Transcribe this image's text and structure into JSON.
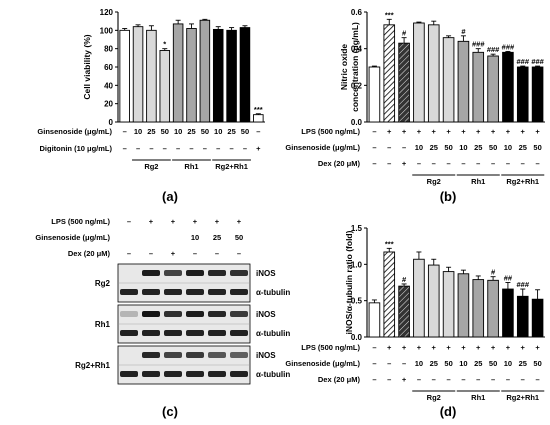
{
  "panel_labels": {
    "a": "(a)",
    "b": "(b)",
    "c": "(c)",
    "d": "(d)"
  },
  "colors": {
    "black": "#000000",
    "white": "#ffffff",
    "gray_light": "#d9d9d9",
    "gray_mid": "#a6a6a6",
    "gray_dark": "#606060",
    "blot_bg": "#e8e8e8"
  },
  "panel_a": {
    "row_labels": [
      "Ginsenoside (μg/mL)",
      "Digitonin (10 μg/mL)"
    ],
    "rows": [
      [
        "–",
        "10",
        "25",
        "50",
        "10",
        "25",
        "50",
        "10",
        "25",
        "50",
        "–"
      ],
      [
        "–",
        "–",
        "–",
        "–",
        "–",
        "–",
        "–",
        "–",
        "–",
        "–",
        "+"
      ]
    ],
    "groups": [
      "Rg2",
      "Rh1",
      "Rg2+Rh1"
    ]
  },
  "panel_b": {
    "row_labels": [
      "LPS (500 ng/mL)",
      "Ginsenoside (μg/mL)",
      "Dex (20 μM)"
    ],
    "rows": [
      [
        "–",
        "+",
        "+",
        "+",
        "+",
        "+",
        "+",
        "+",
        "+",
        "+",
        "+",
        "+"
      ],
      [
        "–",
        "–",
        "–",
        "10",
        "25",
        "50",
        "10",
        "25",
        "50",
        "10",
        "25",
        "50"
      ],
      [
        "–",
        "–",
        "+",
        "–",
        "–",
        "–",
        "–",
        "–",
        "–",
        "–",
        "–",
        "–"
      ]
    ],
    "groups": [
      "Rg2",
      "Rh1",
      "Rg2+Rh1"
    ]
  },
  "panel_c": {
    "row_labels": [
      "LPS (500 ng/mL)",
      "Ginsenoside (μg/mL)",
      "Dex (20 μM)"
    ],
    "rows": [
      [
        "–",
        "+",
        "+",
        "+",
        "+",
        "+"
      ],
      [
        "",
        "",
        "",
        "10",
        "25",
        "50"
      ],
      [
        "–",
        "–",
        "+",
        "–",
        "–",
        "–"
      ]
    ],
    "blots": [
      {
        "group": "Rg2",
        "bands": [
          "iNOS",
          "α-tubulin"
        ]
      },
      {
        "group": "Rh1",
        "bands": [
          "iNOS",
          "α-tubulin"
        ]
      },
      {
        "group": "Rg2+Rh1",
        "bands": [
          "iNOS",
          "α-tubulin"
        ]
      }
    ],
    "inos_intensity": [
      [
        0.0,
        0.9,
        0.7,
        0.9,
        0.85,
        0.8
      ],
      [
        0.1,
        0.95,
        0.8,
        0.9,
        0.85,
        0.75
      ],
      [
        0.0,
        0.85,
        0.7,
        0.75,
        0.6,
        0.55
      ]
    ]
  },
  "panel_d": {
    "row_labels": [
      "LPS (500 ng/mL)",
      "Ginsenoside (μg/mL)",
      "Dex (20 μM)"
    ],
    "rows": [
      [
        "–",
        "+",
        "+",
        "+",
        "+",
        "+",
        "+",
        "+",
        "+",
        "+",
        "+",
        "+"
      ],
      [
        "–",
        "–",
        "–",
        "10",
        "25",
        "50",
        "10",
        "25",
        "50",
        "10",
        "25",
        "50"
      ],
      [
        "–",
        "–",
        "+",
        "–",
        "–",
        "–",
        "–",
        "–",
        "–",
        "–",
        "–",
        "–"
      ]
    ],
    "groups": [
      "Rg2",
      "Rh1",
      "Rg2+Rh1"
    ]
  },
  "chart_data": [
    {
      "type": "bar",
      "panel": "a",
      "ylabel": "Cell viability (%)",
      "ylim": [
        0,
        120
      ],
      "yticks": [
        "0",
        "20",
        "40",
        "60",
        "80",
        "100",
        "120"
      ],
      "values": [
        100,
        104,
        100,
        78,
        107,
        102,
        111,
        101,
        100,
        103,
        8
      ],
      "errors": [
        2,
        2,
        5,
        2,
        4,
        5,
        1,
        3,
        3,
        2,
        1
      ],
      "fills": [
        "white",
        "gray_light",
        "gray_light",
        "gray_light",
        "gray_mid",
        "gray_mid",
        "gray_mid",
        "black",
        "black",
        "black",
        "white"
      ],
      "annotations": [
        "",
        "",
        "",
        "*",
        "",
        "",
        "",
        "",
        "",
        "",
        "***"
      ]
    },
    {
      "type": "bar",
      "panel": "b",
      "ylabel": "Nitric oxide concentration (μg/mL)",
      "ylim": [
        0,
        0.6
      ],
      "yticks": [
        "0.0",
        "0.2",
        "0.4",
        "0.6"
      ],
      "values": [
        0.3,
        0.53,
        0.43,
        0.54,
        0.53,
        0.46,
        0.44,
        0.38,
        0.36,
        0.38,
        0.3,
        0.3
      ],
      "errors": [
        0.005,
        0.03,
        0.03,
        0.005,
        0.02,
        0.01,
        0.03,
        0.02,
        0.01,
        0.005,
        0.005,
        0.005
      ],
      "fills": [
        "white",
        "hatch",
        "hatchdark",
        "gray_light",
        "gray_light",
        "gray_light",
        "gray_mid",
        "gray_mid",
        "gray_mid",
        "black",
        "black",
        "black"
      ],
      "annotations": [
        "",
        "***",
        "#",
        "",
        "",
        "",
        "#",
        "###",
        "###",
        "###",
        "###",
        "###"
      ]
    },
    {
      "type": "bar",
      "panel": "d",
      "ylabel": "iNOS/α-tubulin ratio (fold)",
      "ylim": [
        0,
        1.5
      ],
      "yticks": [
        "0.0",
        "0.5",
        "1.0",
        "1.5"
      ],
      "values": [
        0.47,
        1.17,
        0.7,
        1.07,
        0.99,
        0.9,
        0.87,
        0.79,
        0.78,
        0.66,
        0.56,
        0.52
      ],
      "errors": [
        0.04,
        0.05,
        0.03,
        0.1,
        0.08,
        0.06,
        0.05,
        0.05,
        0.05,
        0.09,
        0.1,
        0.13
      ],
      "fills": [
        "white",
        "hatch",
        "hatchdark",
        "gray_light",
        "gray_light",
        "gray_light",
        "gray_mid",
        "gray_mid",
        "gray_mid",
        "black",
        "black",
        "black"
      ],
      "annotations": [
        "",
        "***",
        "#",
        "",
        "",
        "",
        "",
        "",
        "#",
        "##",
        "###",
        ""
      ]
    }
  ]
}
